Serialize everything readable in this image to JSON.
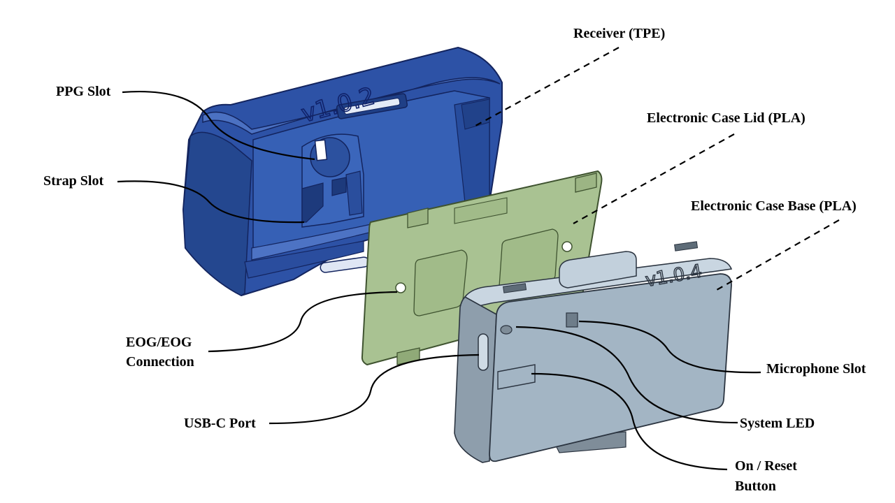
{
  "parts": {
    "receiver": "Receiver (TPE)",
    "lid": "Electronic Case Lid (PLA)",
    "base": "Electronic Case Base (PLA)"
  },
  "callouts": {
    "ppg_slot": "PPG Slot",
    "strap_slot": "Strap Slot",
    "eog_line1": "EOG/EOG",
    "eog_line2": "Connection",
    "usb_c": "USB-C Port",
    "microphone": "Microphone Slot",
    "system_led": "System LED",
    "on_reset_line1": "On / Reset",
    "on_reset_line2": "Button"
  },
  "engravings": {
    "receiver_version": "v1.0.2",
    "base_version": "v1.0.4"
  },
  "colors": {
    "receiver": "#2e55a8",
    "lid": "#a9c292",
    "base": "#a3b5c4"
  }
}
